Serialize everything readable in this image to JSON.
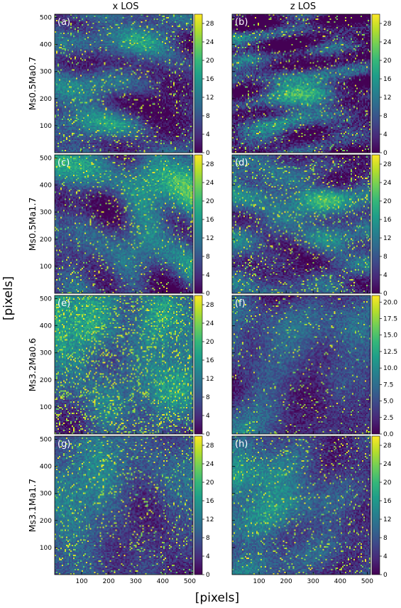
{
  "figure": {
    "column_titles": [
      "x LOS",
      "z LOS"
    ],
    "row_labels": [
      "Ms0.5Ma0.7",
      "Ms0.5Ma1.7",
      "Ms3.2Ma0.6",
      "Ms3.1Ma1.7"
    ],
    "xlabel": "[pixels]",
    "ylabel": "[pixels]"
  },
  "colors": {
    "colormap": "viridis",
    "viridis_stops": [
      "#440154",
      "#482878",
      "#3e4989",
      "#31688e",
      "#26828e",
      "#1f9e89",
      "#35b779",
      "#6ece58",
      "#b5de2b",
      "#fde725"
    ]
  },
  "chart_data": [
    {
      "type": "heatmap",
      "panel": "(a)",
      "column": "x LOS",
      "row": "Ms0.5Ma0.7",
      "x_ticks": [
        100,
        200,
        300,
        400,
        500
      ],
      "y_ticks": [
        100,
        200,
        300,
        400,
        500
      ],
      "xlim": [
        0,
        512
      ],
      "ylim": [
        0,
        512
      ],
      "colorbar_ticks": [
        "0",
        "4",
        "8",
        "12",
        "16",
        "20",
        "24",
        "28"
      ],
      "clim": [
        0,
        30
      ],
      "texture": {
        "mean": 0.27,
        "contrast": 1.6,
        "bright": 0.06,
        "seed": 11,
        "stretch": 1.4
      }
    },
    {
      "type": "heatmap",
      "panel": "(b)",
      "column": "z LOS",
      "row": "Ms0.5Ma0.7",
      "x_ticks": [
        100,
        200,
        300,
        400,
        500
      ],
      "y_ticks": [
        100,
        200,
        300,
        400,
        500
      ],
      "xlim": [
        0,
        512
      ],
      "ylim": [
        0,
        512
      ],
      "colorbar_ticks": [
        "0",
        "4",
        "8",
        "12",
        "16",
        "20",
        "24",
        "28"
      ],
      "clim": [
        0,
        30
      ],
      "texture": {
        "mean": 0.18,
        "contrast": 2.2,
        "bright": 0.05,
        "seed": 23,
        "stretch": 2.6
      }
    },
    {
      "type": "heatmap",
      "panel": "(c)",
      "column": "x LOS",
      "row": "Ms0.5Ma1.7",
      "x_ticks": [
        100,
        200,
        300,
        400,
        500
      ],
      "y_ticks": [
        100,
        200,
        300,
        400,
        500
      ],
      "xlim": [
        0,
        512
      ],
      "ylim": [
        0,
        512
      ],
      "colorbar_ticks": [
        "0",
        "4",
        "8",
        "12",
        "16",
        "20",
        "24",
        "28"
      ],
      "clim": [
        0,
        30
      ],
      "texture": {
        "mean": 0.28,
        "contrast": 1.5,
        "bright": 0.06,
        "seed": 37,
        "stretch": 1.2
      }
    },
    {
      "type": "heatmap",
      "panel": "(d)",
      "column": "z LOS",
      "row": "Ms0.5Ma1.7",
      "x_ticks": [
        100,
        200,
        300,
        400,
        500
      ],
      "y_ticks": [
        100,
        200,
        300,
        400,
        500
      ],
      "xlim": [
        0,
        512
      ],
      "ylim": [
        0,
        512
      ],
      "colorbar_ticks": [
        "0",
        "4",
        "8",
        "12",
        "16",
        "20",
        "24",
        "28"
      ],
      "clim": [
        0,
        30
      ],
      "texture": {
        "mean": 0.3,
        "contrast": 1.6,
        "bright": 0.08,
        "seed": 41,
        "stretch": 1.6
      }
    },
    {
      "type": "heatmap",
      "panel": "(e)",
      "column": "x LOS",
      "row": "Ms3.2Ma0.6",
      "x_ticks": [
        100,
        200,
        300,
        400,
        500
      ],
      "y_ticks": [
        100,
        200,
        300,
        400,
        500
      ],
      "xlim": [
        0,
        512
      ],
      "ylim": [
        0,
        512
      ],
      "colorbar_ticks": [
        "0",
        "4",
        "8",
        "12",
        "16",
        "20",
        "24",
        "28"
      ],
      "clim": [
        0,
        30
      ],
      "texture": {
        "mean": 0.36,
        "contrast": 1.7,
        "bright": 0.14,
        "seed": 53,
        "stretch": 1.0
      }
    },
    {
      "type": "heatmap",
      "panel": "(f)",
      "column": "z LOS",
      "row": "Ms3.2Ma0.6",
      "x_ticks": [
        100,
        200,
        300,
        400,
        500
      ],
      "y_ticks": [
        100,
        200,
        300,
        400,
        500
      ],
      "xlim": [
        0,
        512
      ],
      "ylim": [
        0,
        512
      ],
      "colorbar_ticks": [
        "0.0",
        "2.5",
        "5.0",
        "7.5",
        "10.0",
        "12.5",
        "15.0",
        "17.5",
        "20.0"
      ],
      "clim": [
        0,
        21
      ],
      "texture": {
        "mean": 0.24,
        "contrast": 1.5,
        "bright": 0.04,
        "seed": 67,
        "stretch": 1.1
      }
    },
    {
      "type": "heatmap",
      "panel": "(g)",
      "column": "x LOS",
      "row": "Ms3.1Ma1.7",
      "x_ticks": [
        100,
        200,
        300,
        400,
        500
      ],
      "y_ticks": [
        100,
        200,
        300,
        400,
        500
      ],
      "xlim": [
        0,
        512
      ],
      "ylim": [
        0,
        512
      ],
      "colorbar_ticks": [
        "0",
        "4",
        "8",
        "12",
        "16",
        "20",
        "24",
        "28"
      ],
      "clim": [
        0,
        30
      ],
      "texture": {
        "mean": 0.27,
        "contrast": 1.6,
        "bright": 0.07,
        "seed": 79,
        "stretch": 1.0
      }
    },
    {
      "type": "heatmap",
      "panel": "(h)",
      "column": "z LOS",
      "row": "Ms3.1Ma1.7",
      "x_ticks": [
        100,
        200,
        300,
        400,
        500
      ],
      "y_ticks": [
        100,
        200,
        300,
        400,
        500
      ],
      "xlim": [
        0,
        512
      ],
      "ylim": [
        0,
        512
      ],
      "colorbar_ticks": [
        "0",
        "4",
        "8",
        "12",
        "16",
        "20",
        "24",
        "28"
      ],
      "clim": [
        0,
        30
      ],
      "texture": {
        "mean": 0.26,
        "contrast": 1.6,
        "bright": 0.06,
        "seed": 97,
        "stretch": 1.1
      }
    }
  ]
}
